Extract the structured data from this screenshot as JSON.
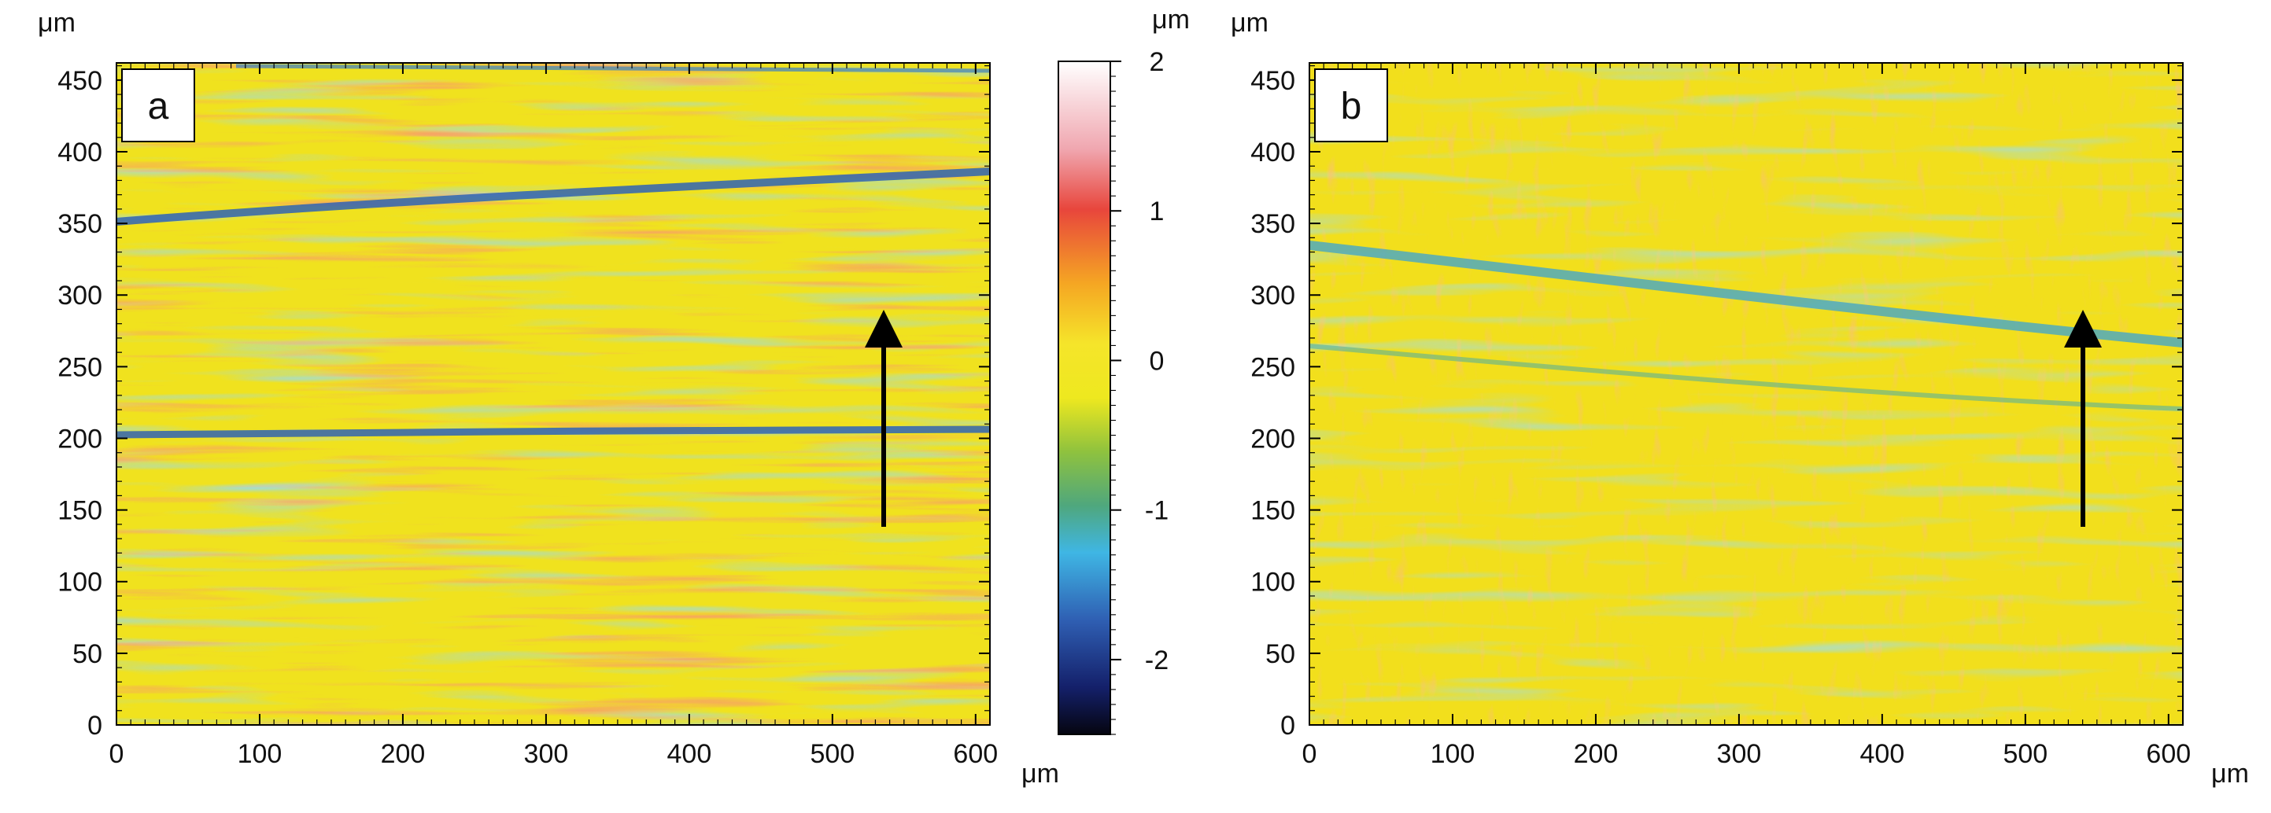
{
  "figure": {
    "unit_label": "μm",
    "panels": [
      {
        "letter": "a",
        "x_ticks": [
          "0",
          "100",
          "200",
          "300",
          "400",
          "500",
          "600"
        ],
        "y_ticks": [
          "0",
          "50",
          "100",
          "150",
          "200",
          "250",
          "300",
          "350",
          "400",
          "450"
        ],
        "x_unit": "μm",
        "y_unit": "μm"
      },
      {
        "letter": "b",
        "x_ticks": [
          "0",
          "100",
          "200",
          "300",
          "400",
          "500",
          "600"
        ],
        "y_ticks": [
          "0",
          "50",
          "100",
          "150",
          "200",
          "250",
          "300",
          "350",
          "400",
          "450"
        ],
        "x_unit": "μm",
        "y_unit": "μm"
      }
    ],
    "colorbar": {
      "unit": "μm",
      "ticks": [
        "2",
        "1",
        "0",
        "-1",
        "-2"
      ],
      "colors": [
        "#ffffff",
        "#f0a7b0",
        "#e8463c",
        "#f5a623",
        "#f5e52a",
        "#f0e820",
        "#8fc23e",
        "#4fa77d",
        "#3fb6e4",
        "#2f5fb3",
        "#14206a",
        "#050510"
      ]
    }
  }
}
